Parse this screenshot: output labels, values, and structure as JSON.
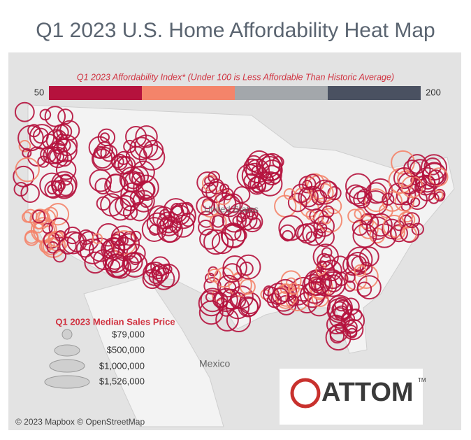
{
  "header": {
    "title": "Q1 2023 U.S. Home Affordability Heat Map"
  },
  "color_legend": {
    "title": "Q1 2023 Affordability Index* (Under 100 is Less Affordable Than Historic Average)",
    "min_label": "50",
    "max_label": "200",
    "colors": [
      "#b5123d",
      "#f4846a",
      "#a3a7ab",
      "#4a5161"
    ]
  },
  "size_legend": {
    "title": "Q1 2023 Median Sales Price",
    "labels": [
      "$79,000",
      "$500,000",
      "$1,000,000",
      "$1,526,000"
    ]
  },
  "map_labels": {
    "country": "United States",
    "neighbor": "Mexico"
  },
  "attribution": "© 2023 Mapbox © OpenStreetMap",
  "logo": {
    "name": "ATTOM",
    "mark": "TM"
  }
}
